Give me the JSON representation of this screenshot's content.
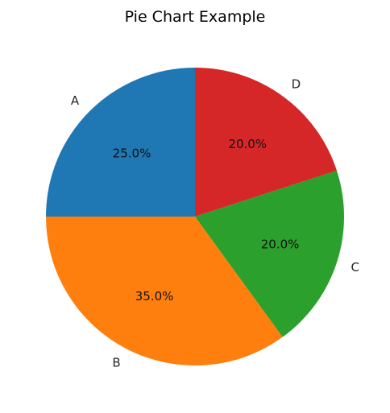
{
  "chart_data": {
    "type": "pie",
    "title": "Pie Chart Example",
    "categories": [
      "A",
      "B",
      "C",
      "D"
    ],
    "values": [
      25,
      35,
      20,
      20
    ],
    "percent_labels": [
      "25.0%",
      "35.0%",
      "20.0%",
      "20.0%"
    ],
    "colors": [
      "#1f77b4",
      "#ff7f0e",
      "#2ca02c",
      "#d62728"
    ],
    "start_angle_deg": 90,
    "direction": "counterclockwise",
    "legend": "none"
  }
}
